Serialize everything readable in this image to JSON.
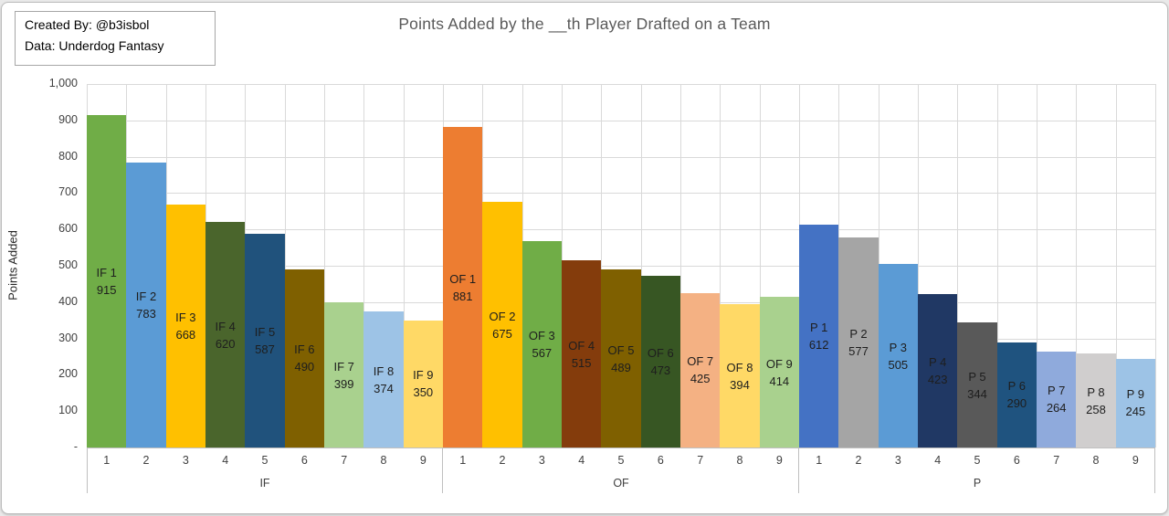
{
  "annotation": {
    "line1": "Created By: @b3isbol",
    "line2": "Data: Underdog Fantasy"
  },
  "chart_data": {
    "type": "bar",
    "title": "Points Added by the __th Player Drafted on a Team",
    "ylabel": "Points Added",
    "xlabel": "",
    "ylim": [
      0,
      1000
    ],
    "ytick_interval": 100,
    "ytick_labels": [
      "-",
      "100",
      "200",
      "300",
      "400",
      "500",
      "600",
      "700",
      "800",
      "900",
      "1,000"
    ],
    "grid": true,
    "legend_position": "none",
    "bar_gap": 0,
    "data_label_format": "{group} {category}\n{value}",
    "groups": [
      {
        "label": "IF",
        "categories": [
          "1",
          "2",
          "3",
          "4",
          "5",
          "6",
          "7",
          "8",
          "9"
        ],
        "values": [
          915,
          783,
          668,
          620,
          587,
          490,
          399,
          374,
          350
        ],
        "colors": [
          "#70AD47",
          "#5B9BD5",
          "#FFC000",
          "#4A652C",
          "#20527C",
          "#7F6000",
          "#A9D18E",
          "#9DC3E6",
          "#FFD966"
        ]
      },
      {
        "label": "OF",
        "categories": [
          "1",
          "2",
          "3",
          "4",
          "5",
          "6",
          "7",
          "8",
          "9"
        ],
        "values": [
          881,
          675,
          567,
          515,
          489,
          473,
          425,
          394,
          414
        ],
        "colors": [
          "#ED7D31",
          "#FFC000",
          "#70AD47",
          "#843C0C",
          "#7F6000",
          "#375623",
          "#F4B183",
          "#FFD966",
          "#A9D18E"
        ]
      },
      {
        "label": "P",
        "categories": [
          "1",
          "2",
          "3",
          "4",
          "5",
          "6",
          "7",
          "8",
          "9"
        ],
        "values": [
          612,
          577,
          505,
          423,
          344,
          290,
          264,
          258,
          245
        ],
        "colors": [
          "#4472C4",
          "#A5A5A5",
          "#5B9BD5",
          "#203864",
          "#595959",
          "#1F537F",
          "#8FAADC",
          "#D0CECE",
          "#9DC3E6"
        ]
      }
    ],
    "colors_meaning": {
      "grid": "#D9D9D9",
      "axis": "#BFBFBF",
      "title_text": "#595959",
      "tick_text": "#404040",
      "data_label_text": "#1E1E1E"
    }
  }
}
